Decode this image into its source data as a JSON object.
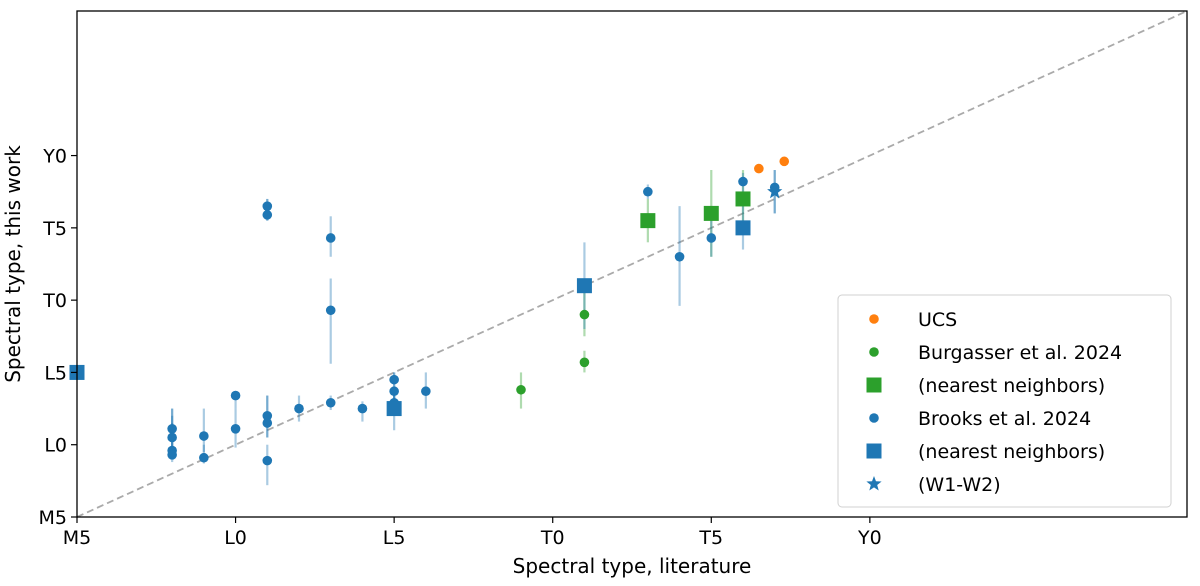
{
  "chart_data": {
    "type": "scatter",
    "xlabel": "Spectral type, literature",
    "ylabel": "Spectral type, this work",
    "xlim": [
      -5,
      30
    ],
    "ylim": [
      -5,
      30
    ],
    "x_ticks": [
      {
        "value": -5,
        "label": "M5"
      },
      {
        "value": 0,
        "label": "L0"
      },
      {
        "value": 5,
        "label": "L5"
      },
      {
        "value": 10,
        "label": "T0"
      },
      {
        "value": 15,
        "label": "T5"
      },
      {
        "value": 20,
        "label": "Y0"
      }
    ],
    "y_ticks": [
      {
        "value": -5,
        "label": "M5"
      },
      {
        "value": 0,
        "label": "L0"
      },
      {
        "value": 5,
        "label": "L5"
      },
      {
        "value": 10,
        "label": "T0"
      },
      {
        "value": 15,
        "label": "T5"
      },
      {
        "value": 20,
        "label": "Y0"
      }
    ],
    "grid": false,
    "reference_line": "one-to-one dashed",
    "legend_position": "bottom-right",
    "colors": {
      "ucs": "#ff7f0e",
      "burgasser": "#2ca02c",
      "brooks": "#1f77b4",
      "reference": "#aaaaaa"
    },
    "series": [
      {
        "name": "UCS",
        "marker": "circle",
        "color": "#ff7f0e",
        "points": [
          {
            "x": 16.5,
            "y": 19.1
          },
          {
            "x": 17.3,
            "y": 19.6
          }
        ]
      },
      {
        "name": "Burgasser et al. 2024",
        "marker": "circle",
        "color": "#2ca02c",
        "points": [
          {
            "x": 9.0,
            "y": 3.8,
            "ylo": 2.5,
            "yhi": 5.0
          },
          {
            "x": 11.0,
            "y": 9.0,
            "ylo": 7.5,
            "yhi": 10.5
          },
          {
            "x": 11.0,
            "y": 5.7,
            "ylo": 5.0,
            "yhi": 6.5
          }
        ]
      },
      {
        "name": "(nearest neighbors)",
        "marker": "square",
        "color": "#2ca02c",
        "points": [
          {
            "x": 13.0,
            "y": 15.5,
            "ylo": 14.0,
            "yhi": 17.0
          },
          {
            "x": 15.0,
            "y": 16.0,
            "ylo": 13.0,
            "yhi": 19.0
          },
          {
            "x": 16.0,
            "y": 17.0,
            "ylo": 15.0,
            "yhi": 19.0
          }
        ]
      },
      {
        "name": "Brooks et al. 2024",
        "marker": "circle",
        "color": "#1f77b4",
        "points": [
          {
            "x": -2.0,
            "y": 1.1,
            "ylo": -1.0,
            "yhi": 2.5
          },
          {
            "x": -2.0,
            "y": 0.5,
            "ylo": -1.0,
            "yhi": 2.5
          },
          {
            "x": -2.0,
            "y": -0.4,
            "ylo": -1.0,
            "yhi": 2.0
          },
          {
            "x": -2.0,
            "y": -0.7,
            "ylo": -1.2,
            "yhi": 1.5
          },
          {
            "x": -1.0,
            "y": 0.6,
            "ylo": -0.5,
            "yhi": 2.5
          },
          {
            "x": -1.0,
            "y": -0.9,
            "ylo": -1.3,
            "yhi": 0.0
          },
          {
            "x": 0.0,
            "y": 3.4,
            "ylo": 2.5,
            "yhi": 3.4
          },
          {
            "x": 0.0,
            "y": 1.1,
            "ylo": -0.2,
            "yhi": 2.5
          },
          {
            "x": 1.0,
            "y": 2.0,
            "ylo": 0.5,
            "yhi": 3.4
          },
          {
            "x": 1.0,
            "y": 1.5,
            "ylo": 0.5,
            "yhi": 3.4
          },
          {
            "x": 1.0,
            "y": -1.1,
            "ylo": -2.8,
            "yhi": 0.0
          },
          {
            "x": 1.0,
            "y": 16.5,
            "ylo": 15.5,
            "yhi": 17.0
          },
          {
            "x": 1.0,
            "y": 15.9,
            "ylo": 15.5,
            "yhi": 17.0
          },
          {
            "x": 2.0,
            "y": 2.5,
            "ylo": 1.6,
            "yhi": 3.4
          },
          {
            "x": 3.0,
            "y": 2.9,
            "ylo": 2.4,
            "yhi": 3.4
          },
          {
            "x": 3.0,
            "y": 14.3,
            "ylo": 13.0,
            "yhi": 15.8
          },
          {
            "x": 3.0,
            "y": 9.3,
            "ylo": 5.6,
            "yhi": 11.5
          },
          {
            "x": 4.0,
            "y": 2.5,
            "ylo": 1.6,
            "yhi": 3.0
          },
          {
            "x": 5.0,
            "y": 4.5,
            "ylo": 3.0,
            "yhi": 5.0
          },
          {
            "x": 5.0,
            "y": 3.7,
            "ylo": 3.0,
            "yhi": 5.0
          },
          {
            "x": 5.0,
            "y": 2.9,
            "ylo": 2.5,
            "yhi": 3.5
          },
          {
            "x": 6.0,
            "y": 3.7,
            "ylo": 2.5,
            "yhi": 5.0
          },
          {
            "x": 13.0,
            "y": 17.5,
            "ylo": 17.0,
            "yhi": 18.0
          },
          {
            "x": 14.0,
            "y": 13.0,
            "ylo": 9.6,
            "yhi": 16.5
          },
          {
            "x": 15.0,
            "y": 14.3,
            "ylo": 13.0,
            "yhi": 15.5
          },
          {
            "x": 16.0,
            "y": 18.2,
            "ylo": 17.5,
            "yhi": 18.8
          },
          {
            "x": 17.0,
            "y": 17.8,
            "ylo": 16.0,
            "yhi": 19.0
          }
        ]
      },
      {
        "name": "(nearest neighbors)",
        "marker": "square",
        "color": "#1f77b4",
        "points": [
          {
            "x": -5.0,
            "y": 5.0
          },
          {
            "x": 5.0,
            "y": 2.5,
            "ylo": 1.0,
            "yhi": 3.5
          },
          {
            "x": 11.0,
            "y": 11.0,
            "ylo": 8.0,
            "yhi": 14.0
          },
          {
            "x": 16.0,
            "y": 15.0,
            "ylo": 13.5,
            "yhi": 17.0
          }
        ]
      },
      {
        "name": "(W1-W2)",
        "marker": "star",
        "color": "#1f77b4",
        "points": [
          {
            "x": 17.0,
            "y": 17.5,
            "ylo": 16.0,
            "yhi": 19.0
          }
        ]
      }
    ]
  }
}
